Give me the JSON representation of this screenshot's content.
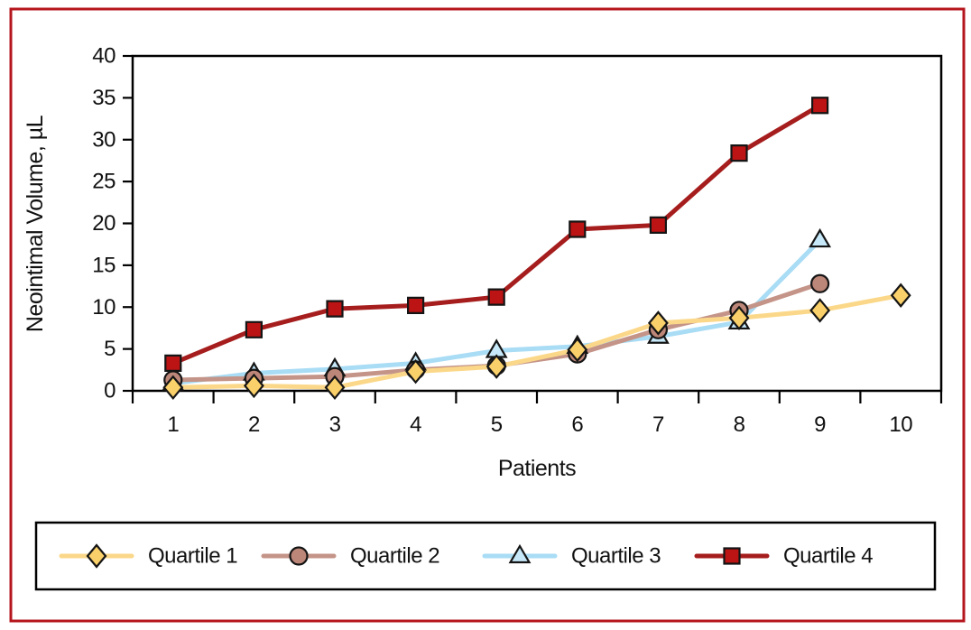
{
  "figure": {
    "background": "#ffffff",
    "border_color": "#B5161D",
    "frame_color": "#000000",
    "text_color": "#111111"
  },
  "chart_data": {
    "type": "line",
    "title": "",
    "xlabel": "Patients",
    "ylabel": "Neointimal Volume, µL",
    "ylim": [
      0,
      40
    ],
    "yticks": [
      0,
      5,
      10,
      15,
      20,
      25,
      30,
      35,
      40
    ],
    "categories": [
      "1",
      "2",
      "3",
      "4",
      "5",
      "6",
      "7",
      "8",
      "9",
      "10"
    ],
    "grid": false,
    "series": [
      {
        "name": "Quartile 1",
        "marker": "diamond",
        "line_color": "#FBD889",
        "marker_fill": "#FAD06A",
        "values": [
          0.4,
          0.6,
          0.4,
          2.3,
          2.9,
          4.9,
          8.1,
          8.7,
          9.6,
          11.4
        ]
      },
      {
        "name": "Quartile 2",
        "marker": "circle",
        "line_color": "#C49488",
        "marker_fill": "#BC8678",
        "values": [
          1.3,
          1.5,
          1.7,
          2.5,
          3.0,
          4.4,
          7.3,
          9.6,
          12.8,
          null
        ]
      },
      {
        "name": "Quartile 3",
        "marker": "triangle",
        "line_color": "#A9DCF5",
        "marker_fill": "#C6E8F8",
        "values": [
          0.9,
          2.1,
          2.6,
          3.3,
          4.8,
          5.3,
          6.5,
          8.2,
          18.0,
          null
        ]
      },
      {
        "name": "Quartile 4",
        "marker": "square",
        "line_color": "#A61D1D",
        "marker_fill": "#BC1414",
        "values": [
          3.3,
          7.3,
          9.8,
          10.2,
          11.2,
          19.3,
          19.8,
          28.4,
          34.1,
          null
        ]
      }
    ],
    "legend": {
      "position": "bottom",
      "entries": [
        "Quartile 1",
        "Quartile 2",
        "Quartile 3",
        "Quartile 4"
      ]
    }
  }
}
